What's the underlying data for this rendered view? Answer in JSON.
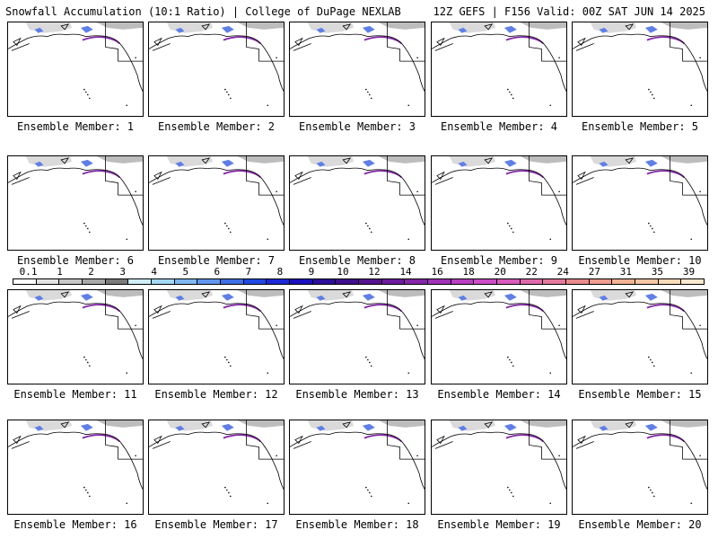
{
  "header": {
    "title_left": "Snowfall Accumulation (10:1 Ratio) | College of DuPage NEXLAB",
    "title_right": "12Z GEFS | F156 Valid: 00Z SAT JUN 14 2025"
  },
  "legend": {
    "labels": [
      "0.1",
      "1",
      "2",
      "3",
      "4",
      "5",
      "6",
      "7",
      "8",
      "9",
      "10",
      "12",
      "14",
      "16",
      "18",
      "20",
      "22",
      "24",
      "27",
      "31",
      "35",
      "39"
    ],
    "colors": [
      "#ffffff",
      "#e2e2e2",
      "#c8c8c8",
      "#a8a8a8",
      "#7a7a7a",
      "#cfeefc",
      "#a2d8f6",
      "#7fb7f1",
      "#5f97ee",
      "#3d6fe8",
      "#1f48e3",
      "#1c2ad6",
      "#1a0fbf",
      "#2d0e9a",
      "#3e0f8c",
      "#55128f",
      "#6d1b9e",
      "#8426a8",
      "#a032b8",
      "#b93fc2",
      "#cc4cc6",
      "#d85bbf",
      "#de6aab",
      "#e27a9c",
      "#e88a8e",
      "#ee9d8d",
      "#f3b295",
      "#f7c5a2",
      "#fadbb7",
      "#fde9cf"
    ]
  },
  "members": [
    {
      "label": "Ensemble Member: 1"
    },
    {
      "label": "Ensemble Member: 2"
    },
    {
      "label": "Ensemble Member: 3"
    },
    {
      "label": "Ensemble Member: 4"
    },
    {
      "label": "Ensemble Member: 5"
    },
    {
      "label": "Ensemble Member: 6"
    },
    {
      "label": "Ensemble Member: 7"
    },
    {
      "label": "Ensemble Member: 8"
    },
    {
      "label": "Ensemble Member: 9"
    },
    {
      "label": "Ensemble Member: 10"
    },
    {
      "label": "Ensemble Member: 11"
    },
    {
      "label": "Ensemble Member: 12"
    },
    {
      "label": "Ensemble Member: 13"
    },
    {
      "label": "Ensemble Member: 14"
    },
    {
      "label": "Ensemble Member: 15"
    },
    {
      "label": "Ensemble Member: 16"
    },
    {
      "label": "Ensemble Member: 17"
    },
    {
      "label": "Ensemble Member: 18"
    },
    {
      "label": "Ensemble Member: 19"
    },
    {
      "label": "Ensemble Member: 20"
    }
  ]
}
